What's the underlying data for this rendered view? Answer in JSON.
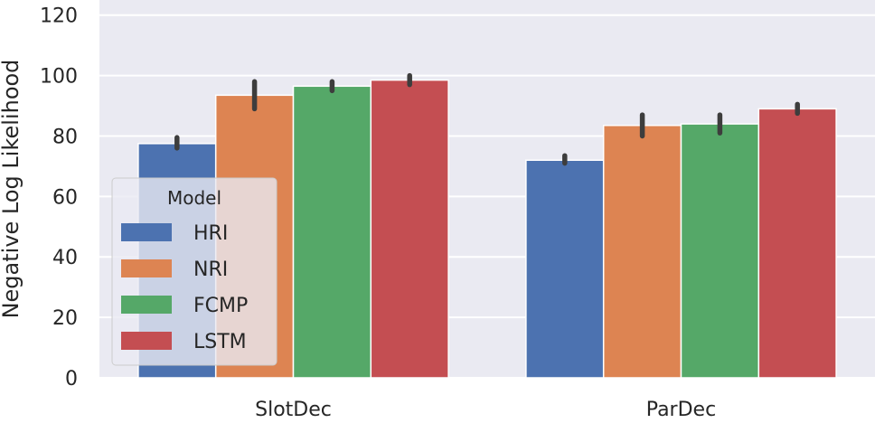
{
  "chart_data": {
    "type": "bar",
    "categories": [
      "SlotDec",
      "ParDec"
    ],
    "ylabel": "Negative Log Likelihood",
    "xlabel": "",
    "ylim": [
      0,
      125
    ],
    "yticks": [
      0,
      20,
      40,
      60,
      80,
      100,
      120
    ],
    "grid": true,
    "legend": {
      "title": "Model",
      "placement": "center-left"
    },
    "series": [
      {
        "name": "HRI",
        "color": "#4c72b0",
        "values": [
          77.5,
          72.0
        ],
        "error_low": [
          76.0,
          71.0
        ],
        "error_high": [
          79.5,
          73.5
        ]
      },
      {
        "name": "NRI",
        "color": "#dd8452",
        "values": [
          93.5,
          83.5
        ],
        "error_low": [
          89.0,
          80.0
        ],
        "error_high": [
          98.0,
          87.0
        ]
      },
      {
        "name": "FCMP",
        "color": "#55a868",
        "values": [
          96.5,
          84.0
        ],
        "error_low": [
          95.0,
          81.0
        ],
        "error_high": [
          98.0,
          87.0
        ]
      },
      {
        "name": "LSTM",
        "color": "#c44e52",
        "values": [
          98.5,
          89.0
        ],
        "error_low": [
          97.0,
          87.5
        ],
        "error_high": [
          100.0,
          90.5
        ]
      }
    ]
  }
}
